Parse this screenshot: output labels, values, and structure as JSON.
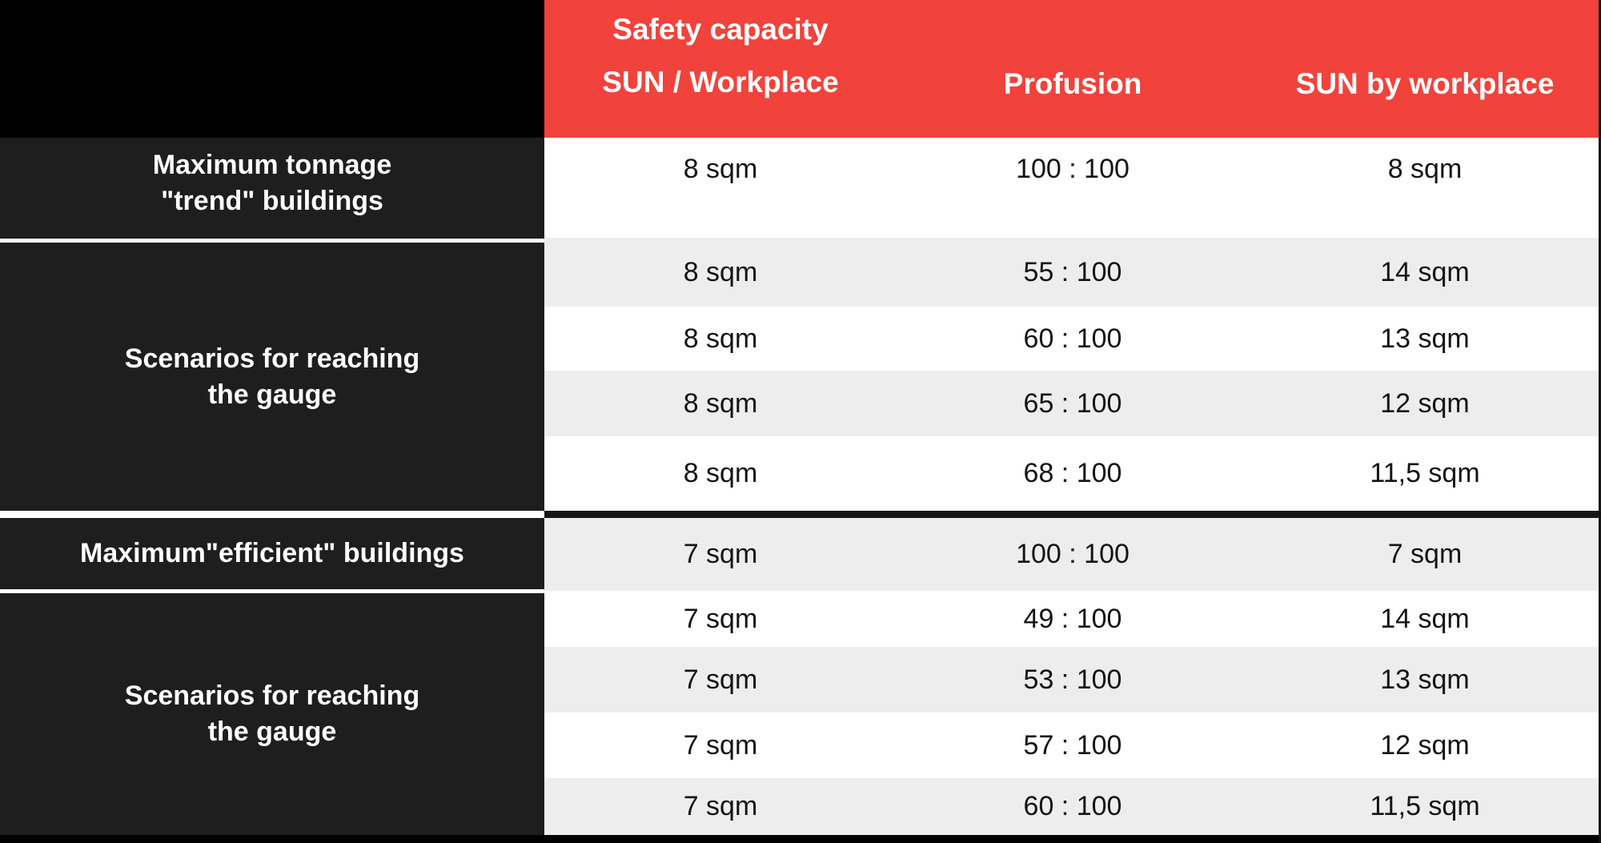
{
  "colors": {
    "header_red": "#F2423C",
    "row_white": "#FFFFFF",
    "row_gray": "#EDEDED",
    "left_header_dark": "#1E1E1E",
    "corner_black": "#000000",
    "divider_dark": "#161616",
    "data_text": "#141414",
    "header_text": "#FFFFFF"
  },
  "chart_data": {
    "type": "table",
    "title": "",
    "columns": [
      "",
      "Safety capacity SUN / Workplace",
      "Profusion",
      "SUN by workplace"
    ],
    "header": {
      "safety_line1": "Safety capacity",
      "safety_line2": "SUN / Workplace",
      "profusion": "Profusion",
      "sun_by_workplace": "SUN by workplace"
    },
    "row_groups": [
      {
        "label_line1": "Maximum tonnage",
        "label_line2": "\"trend\" buildings",
        "row_indexes": [
          0
        ]
      },
      {
        "label_line1": "Scenarios for reaching",
        "label_line2": "the gauge",
        "row_indexes": [
          1,
          2,
          3,
          4
        ]
      },
      {
        "label": "Maximum\"efficient\" buildings",
        "row_indexes": [
          5
        ]
      },
      {
        "label_line1": "Scenarios for reaching",
        "label_line2": "the gauge",
        "row_indexes": [
          6,
          7,
          8,
          9
        ]
      }
    ],
    "rows": [
      [
        "8 sqm",
        "100 : 100",
        "8 sqm"
      ],
      [
        "8 sqm",
        "55 : 100",
        "14 sqm"
      ],
      [
        "8 sqm",
        "60 : 100",
        "13 sqm"
      ],
      [
        "8 sqm",
        "65 : 100",
        "12 sqm"
      ],
      [
        "8 sqm",
        "68 : 100",
        "11,5 sqm"
      ],
      [
        "7 sqm",
        "100 : 100",
        "7 sqm"
      ],
      [
        "7 sqm",
        "49 : 100",
        "14 sqm"
      ],
      [
        "7 sqm",
        "53 : 100",
        "13 sqm"
      ],
      [
        "7 sqm",
        "57 : 100",
        "12 sqm"
      ],
      [
        "7 sqm",
        "60 : 100",
        "11,5 sqm"
      ]
    ]
  }
}
